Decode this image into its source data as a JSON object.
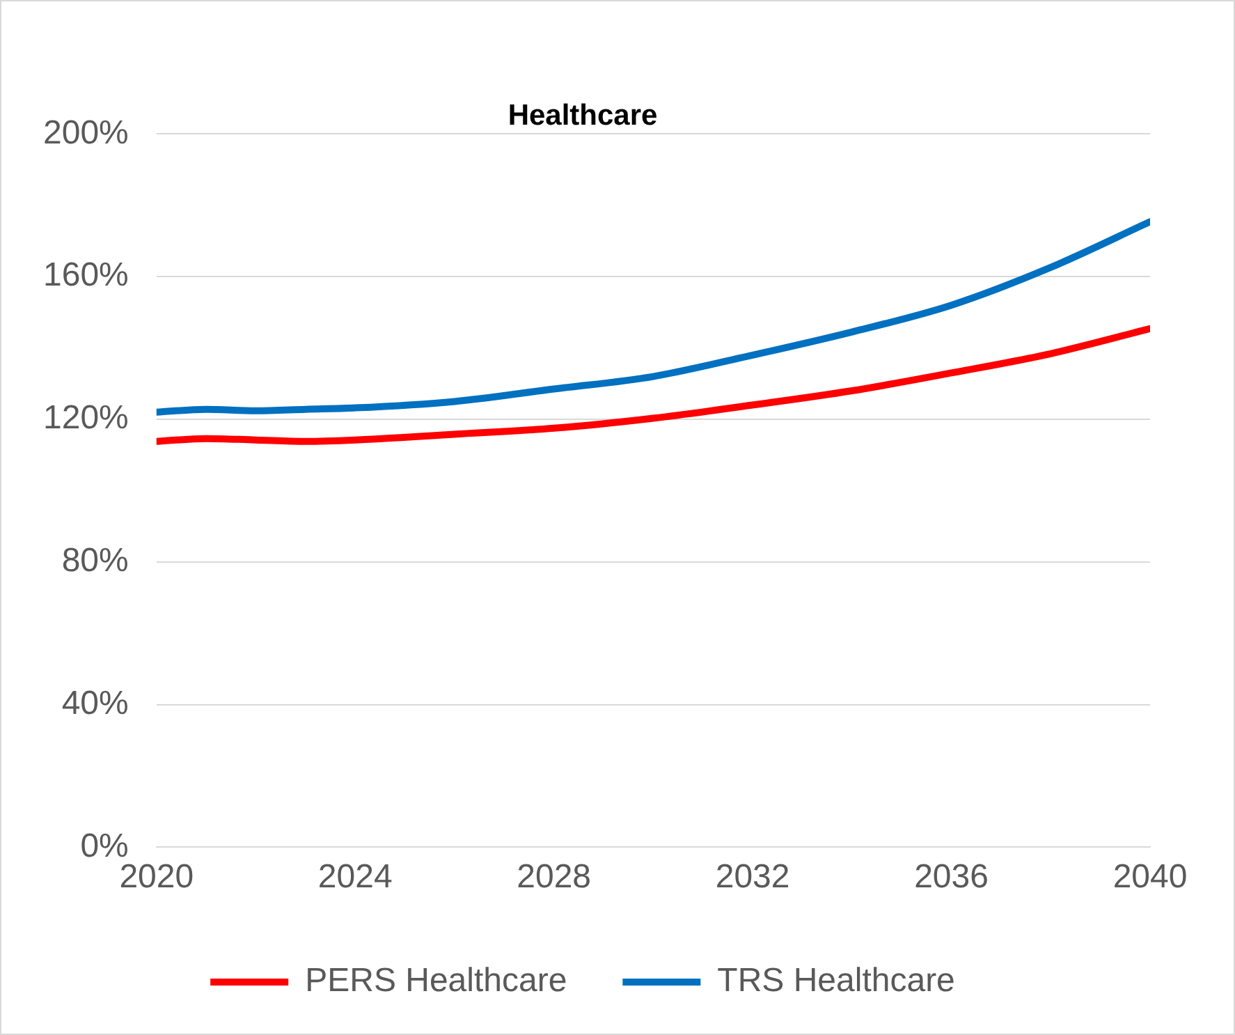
{
  "chart_data": {
    "type": "line",
    "title": "Healthcare",
    "x": [
      2020,
      2021,
      2022,
      2023,
      2024,
      2026,
      2028,
      2030,
      2032,
      2034,
      2036,
      2038,
      2040
    ],
    "series": [
      {
        "name": "PERS Healthcare",
        "color": "#ff0000",
        "values": [
          113.8,
          114.6,
          114.2,
          113.8,
          114.2,
          115.8,
          117.5,
          120.3,
          124,
          128,
          133,
          138.4,
          145.4
        ]
      },
      {
        "name": "TRS Healthcare",
        "color": "#0070c0",
        "values": [
          122,
          122.8,
          122.4,
          122.8,
          123.2,
          125,
          128.5,
          132,
          138,
          144.5,
          152,
          162.6,
          175.4
        ]
      }
    ],
    "xlim": [
      2020,
      2040
    ],
    "xticks": [
      2020,
      2024,
      2028,
      2032,
      2036,
      2040
    ],
    "ylim": [
      0,
      200
    ],
    "yticks": [
      {
        "value": 0,
        "label": "0%"
      },
      {
        "value": 40,
        "label": "40%"
      },
      {
        "value": 80,
        "label": "80%"
      },
      {
        "value": 120,
        "label": "120%"
      },
      {
        "value": 160,
        "label": "160%"
      },
      {
        "value": 200,
        "label": "200%"
      }
    ],
    "grid": "y",
    "legend": "bottom",
    "marker": "none",
    "line_style": "solid"
  }
}
